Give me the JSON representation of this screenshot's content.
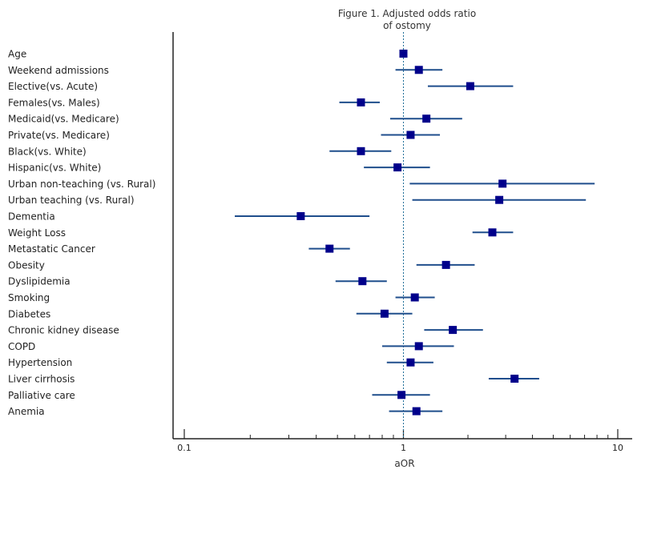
{
  "chart_data": {
    "type": "forest",
    "title_lines": [
      "Figure 1. Adjusted odds ratio",
      "of ostomy"
    ],
    "xlabel": "aOR",
    "xscale": "log",
    "xlim": [
      0.09,
      12
    ],
    "reference_line": 1,
    "major_ticks": [
      0.1,
      1,
      10
    ],
    "major_tick_labels": [
      "0.1",
      "1",
      "10"
    ],
    "minor_ticks": [
      0.2,
      0.3,
      0.4,
      0.5,
      0.6,
      0.7,
      0.8,
      0.9,
      2,
      3,
      4,
      5,
      6,
      7,
      8,
      9
    ],
    "colors": {
      "marker": "#00008b",
      "ci": "#1f4e8c",
      "reference": "#1f6f99",
      "axis": "#222222"
    },
    "rows": [
      {
        "label": "Age",
        "or": 1.0,
        "lo": 1.0,
        "hi": 1.0
      },
      {
        "label": "Weekend admissions",
        "or": 1.18,
        "lo": 0.92,
        "hi": 1.52
      },
      {
        "label": "Elective(vs. Acute)",
        "or": 2.05,
        "lo": 1.3,
        "hi": 3.25
      },
      {
        "label": "Females(vs. Males)",
        "or": 0.64,
        "lo": 0.51,
        "hi": 0.78
      },
      {
        "label": "Medicaid(vs. Medicare)",
        "or": 1.28,
        "lo": 0.87,
        "hi": 1.88
      },
      {
        "label": "Private(vs. Medicare)",
        "or": 1.08,
        "lo": 0.79,
        "hi": 1.48
      },
      {
        "label": "Black(vs. White)",
        "or": 0.64,
        "lo": 0.46,
        "hi": 0.88
      },
      {
        "label": "Hispanic(vs. White)",
        "or": 0.94,
        "lo": 0.66,
        "hi": 1.33
      },
      {
        "label": "Urban non-teaching (vs. Rural)",
        "or": 2.9,
        "lo": 1.07,
        "hi": 7.8
      },
      {
        "label": "Urban teaching (vs. Rural)",
        "or": 2.8,
        "lo": 1.1,
        "hi": 7.1
      },
      {
        "label": "Dementia",
        "or": 0.34,
        "lo": 0.17,
        "hi": 0.7
      },
      {
        "label": "Weight Loss",
        "or": 2.6,
        "lo": 2.1,
        "hi": 3.25
      },
      {
        "label": "Metastatic Cancer",
        "or": 0.46,
        "lo": 0.37,
        "hi": 0.57
      },
      {
        "label": "Obesity",
        "or": 1.58,
        "lo": 1.15,
        "hi": 2.15
      },
      {
        "label": "Dyslipidemia",
        "or": 0.65,
        "lo": 0.49,
        "hi": 0.84
      },
      {
        "label": "Smoking",
        "or": 1.13,
        "lo": 0.92,
        "hi": 1.4
      },
      {
        "label": "Diabetes",
        "or": 0.82,
        "lo": 0.61,
        "hi": 1.1
      },
      {
        "label": "Chronic kidney disease",
        "or": 1.7,
        "lo": 1.25,
        "hi": 2.35
      },
      {
        "label": "COPD",
        "or": 1.18,
        "lo": 0.8,
        "hi": 1.72
      },
      {
        "label": "Hypertension",
        "or": 1.08,
        "lo": 0.84,
        "hi": 1.38
      },
      {
        "label": "Liver cirrhosis",
        "or": 3.3,
        "lo": 2.5,
        "hi": 4.3
      },
      {
        "label": "Palliative care",
        "or": 0.98,
        "lo": 0.72,
        "hi": 1.33
      },
      {
        "label": "Anemia",
        "or": 1.15,
        "lo": 0.86,
        "hi": 1.52
      }
    ]
  }
}
